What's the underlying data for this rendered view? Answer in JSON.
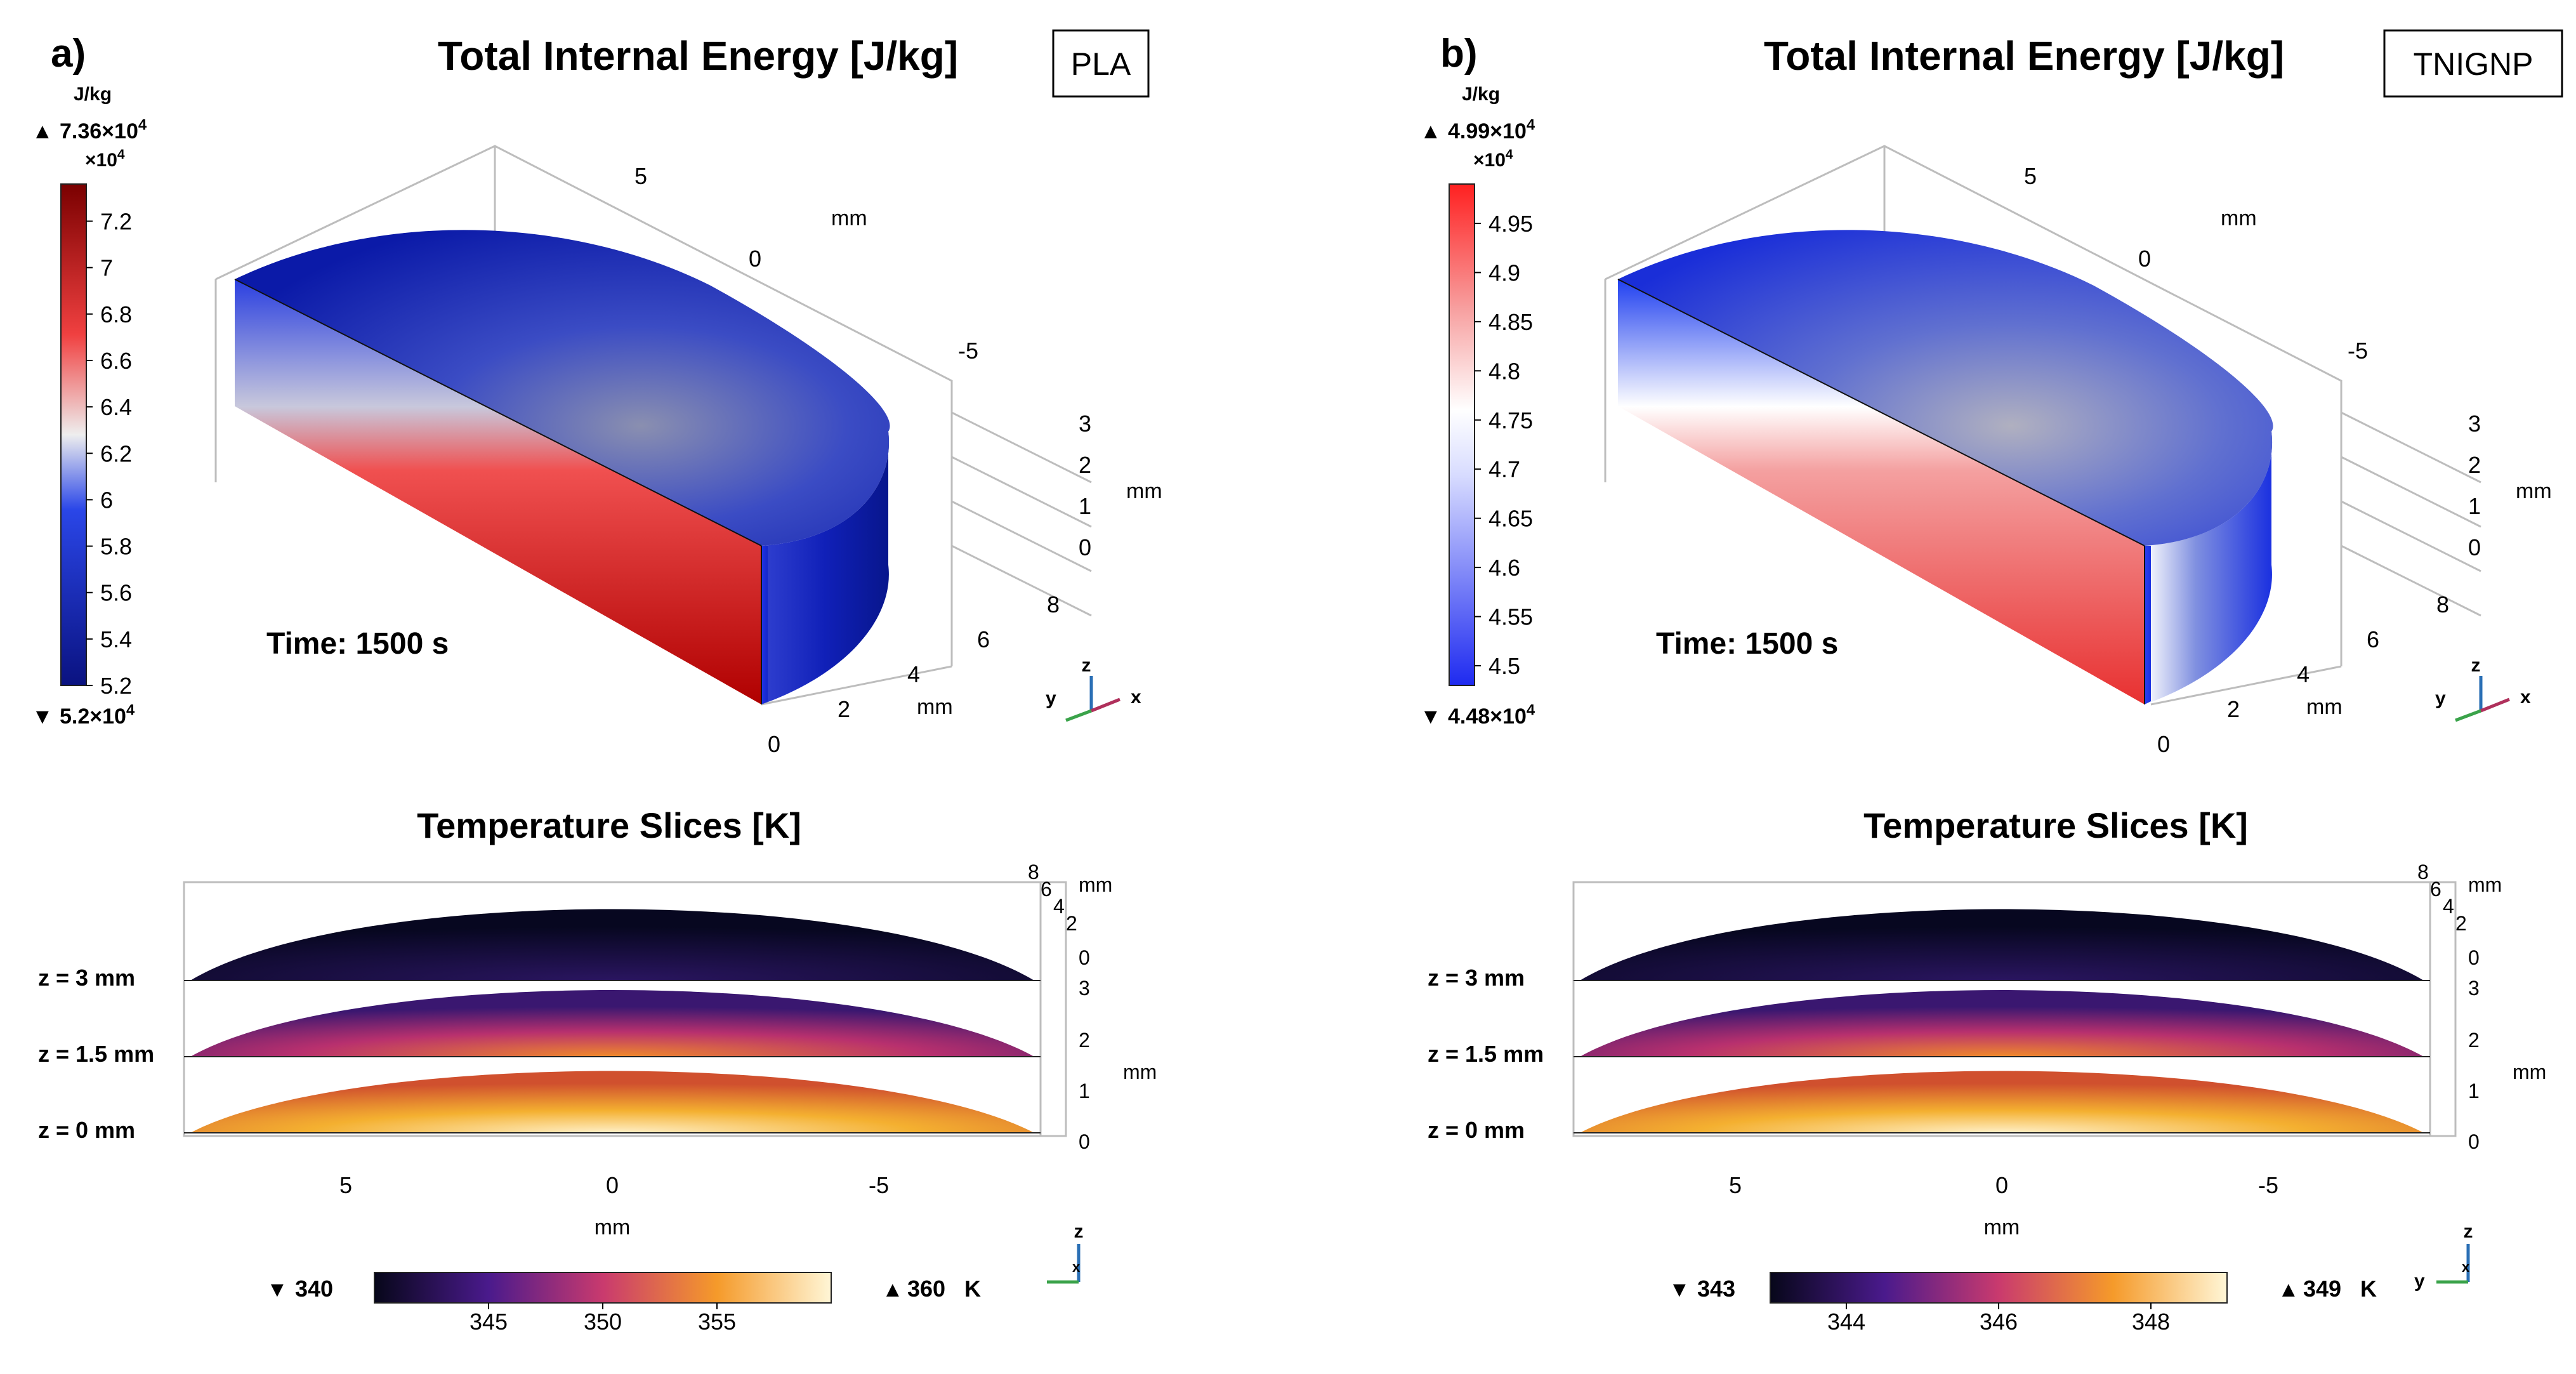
{
  "colors": {
    "background": "#ffffff",
    "ink": "#000000",
    "box_lines": "#bdbdbd",
    "energy_low": "#0a1f9e",
    "energy_mid": "#f4f4f4",
    "energy_high": "#d40000",
    "temp_low": "#0a0a1e",
    "temp_mid": "#c43d7a",
    "temp_high": "#fff2c0",
    "axis_z": "#2a6fb5",
    "axis_x": "#b0305c",
    "axis_y": "#3aa34a"
  },
  "panels": [
    {
      "label": "a)",
      "material": "PLA",
      "top_title": "Total Internal Energy [J/kg]",
      "colorbar_unit": "J/kg",
      "colorbar_max": "7.36×10",
      "colorbar_min": "5.2×10",
      "colorbar_exp": "4",
      "colorbar_multiplier": "×10",
      "time_label": "Time: 1500 s",
      "axis_unit": "mm",
      "axis_x_ticks": [
        "5",
        "0",
        "-5"
      ],
      "axis_z_ticks": [
        "3",
        "2",
        "1",
        "0"
      ],
      "axis_y_ticks": [
        "8",
        "6",
        "4",
        "2",
        "0"
      ],
      "triad": {
        "z": "z",
        "y": "y",
        "x": "x"
      },
      "bottom_title": "Temperature Slices [K]",
      "slice_labels": [
        "z = 3 mm",
        "z = 1.5 mm",
        "z = 0 mm"
      ],
      "bottom_x_ticks": [
        "5",
        "0",
        "-5"
      ],
      "bottom_x_label": "mm",
      "bottom_right_top_ticks": [
        "8",
        "6",
        "4",
        "2",
        "0"
      ],
      "bottom_right_z_ticks": [
        "3",
        "2",
        "1",
        "0"
      ],
      "temp_min_label": "340",
      "temp_max_label": "360",
      "temp_unit": "K",
      "temp_ticks": [
        "345",
        "350",
        "355"
      ]
    },
    {
      "label": "b)",
      "material": "TNIGNP",
      "top_title": "Total Internal Energy [J/kg]",
      "colorbar_unit": "J/kg",
      "colorbar_max": "4.99×10",
      "colorbar_min": "4.48×10",
      "colorbar_exp": "4",
      "colorbar_multiplier": "×10",
      "time_label": "Time: 1500 s",
      "axis_unit": "mm",
      "axis_x_ticks": [
        "5",
        "0",
        "-5"
      ],
      "axis_z_ticks": [
        "3",
        "2",
        "1",
        "0"
      ],
      "axis_y_ticks": [
        "8",
        "6",
        "4",
        "2",
        "0"
      ],
      "triad": {
        "z": "z",
        "y": "y",
        "x": "x"
      },
      "bottom_title": "Temperature Slices [K]",
      "slice_labels": [
        "z = 3 mm",
        "z = 1.5 mm",
        "z = 0 mm"
      ],
      "bottom_x_ticks": [
        "5",
        "0",
        "-5"
      ],
      "bottom_x_label": "mm",
      "bottom_right_top_ticks": [
        "8",
        "6",
        "4",
        "2",
        "0"
      ],
      "bottom_right_z_ticks": [
        "3",
        "2",
        "1",
        "0"
      ],
      "temp_min_label": "343",
      "temp_max_label": "349",
      "temp_unit": "K",
      "temp_ticks": [
        "344",
        "346",
        "348"
      ]
    }
  ],
  "chart_data": [
    {
      "type": "heatmap",
      "title": "Total Internal Energy [J/kg]",
      "panel": "a) PLA",
      "unit": "J/kg",
      "colorbar_range": [
        52000,
        73600
      ],
      "colorbar_ticks": [
        5.2,
        5.4,
        5.6,
        5.8,
        6,
        6.2,
        6.4,
        6.6,
        6.8,
        7,
        7.2
      ],
      "colorbar_tick_multiplier": "×10^4",
      "time_s": 1500,
      "x_ticks_mm": [
        5,
        0,
        -5
      ],
      "y_ticks_mm": [
        0,
        2,
        4,
        6,
        8
      ],
      "z_ticks_mm": [
        0,
        1,
        2,
        3
      ]
    },
    {
      "type": "heatmap",
      "title": "Total Internal Energy [J/kg]",
      "panel": "b) TNIGNP",
      "unit": "J/kg",
      "colorbar_range": [
        44800,
        49900
      ],
      "colorbar_ticks": [
        4.5,
        4.55,
        4.6,
        4.65,
        4.7,
        4.75,
        4.8,
        4.85,
        4.9,
        4.95
      ],
      "colorbar_tick_multiplier": "×10^4",
      "time_s": 1500,
      "x_ticks_mm": [
        5,
        0,
        -5
      ],
      "y_ticks_mm": [
        0,
        2,
        4,
        6,
        8
      ],
      "z_ticks_mm": [
        0,
        1,
        2,
        3
      ]
    },
    {
      "type": "heatmap",
      "title": "Temperature Slices [K]",
      "panel": "a) PLA",
      "unit": "K",
      "slices_z_mm": [
        3,
        1.5,
        0
      ],
      "colorbar_range": [
        340,
        360
      ],
      "colorbar_ticks": [
        345,
        350,
        355
      ],
      "x_ticks_mm": [
        5,
        0,
        -5
      ],
      "y_ticks_mm": [
        8,
        6,
        4,
        2,
        0
      ],
      "z_ticks_mm": [
        3,
        2,
        1,
        0
      ]
    },
    {
      "type": "heatmap",
      "title": "Temperature Slices [K]",
      "panel": "b) TNIGNP",
      "unit": "K",
      "slices_z_mm": [
        3,
        1.5,
        0
      ],
      "colorbar_range": [
        343,
        349
      ],
      "colorbar_ticks": [
        344,
        346,
        348
      ],
      "x_ticks_mm": [
        5,
        0,
        -5
      ],
      "y_ticks_mm": [
        8,
        6,
        4,
        2,
        0
      ],
      "z_ticks_mm": [
        3,
        2,
        1,
        0
      ]
    }
  ]
}
